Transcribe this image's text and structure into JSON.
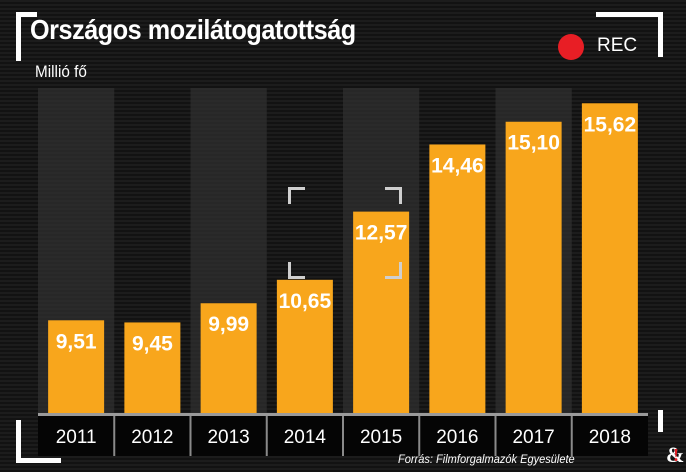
{
  "title": "Országos mozilátogatottság",
  "unit_label": "Millió fő",
  "rec_label": "REC",
  "source": "Forrás: Filmforgalmazók Egyesülete",
  "logo": "&",
  "colors": {
    "bar": "#f8a61c",
    "rec": "#e81e25",
    "band": "#2f2f2f"
  },
  "chart_data": {
    "type": "bar",
    "title": "Országos mozilátogatottság",
    "ylabel": "Millió fő",
    "xlabel": "",
    "categories": [
      "2011",
      "2012",
      "2013",
      "2014",
      "2015",
      "2016",
      "2017",
      "2018"
    ],
    "values": [
      9.51,
      9.45,
      9.99,
      10.65,
      12.57,
      14.46,
      15.1,
      15.62
    ],
    "value_labels": [
      "9,51",
      "9,45",
      "9,99",
      "10,65",
      "12,57",
      "14,46",
      "15,10",
      "15,62"
    ],
    "ylim": [
      6.9,
      16.05
    ],
    "grid": false
  }
}
